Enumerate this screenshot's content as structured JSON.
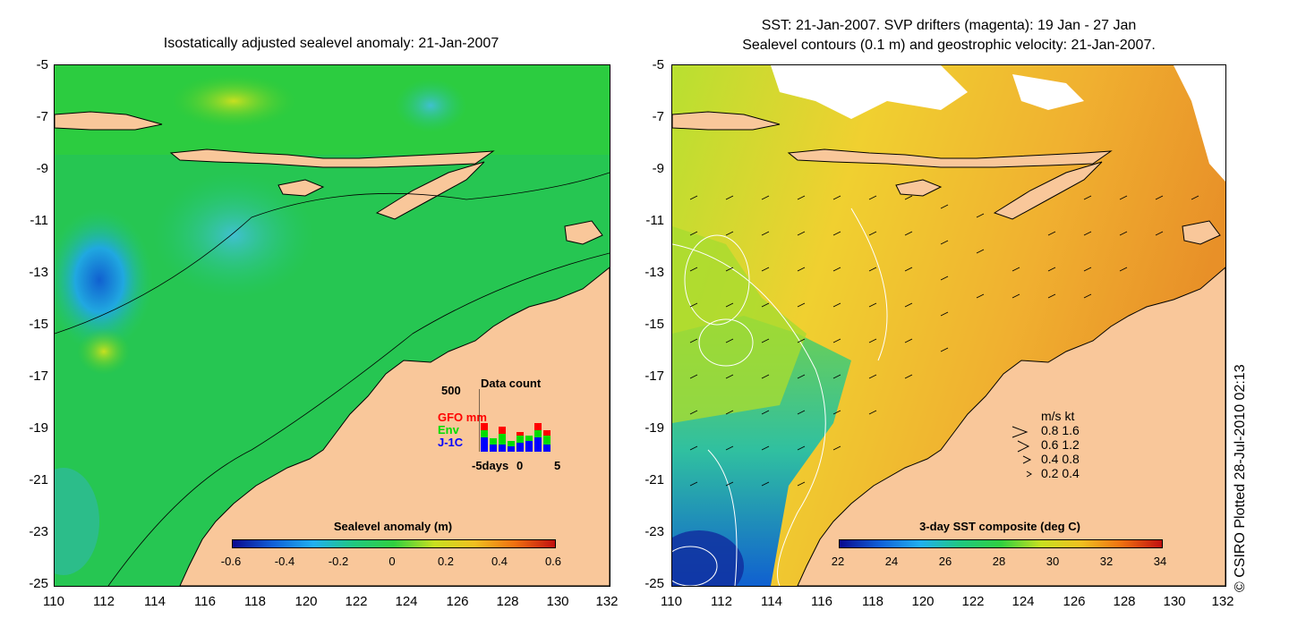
{
  "left_map": {
    "title": "Isostatically adjusted sealevel anomaly: 21-Jan-2007",
    "y_ticks": [
      "-5",
      "-7",
      "-9",
      "-11",
      "-13",
      "-15",
      "-17",
      "-19",
      "-21",
      "-23",
      "-25"
    ],
    "x_ticks": [
      "110",
      "112",
      "114",
      "116",
      "118",
      "120",
      "122",
      "124",
      "126",
      "128",
      "130",
      "132"
    ],
    "colorbar": {
      "title": "Sealevel anomaly (m)",
      "ticks": [
        "-0.6",
        "-0.4",
        "-0.2",
        "0",
        "0.2",
        "0.4",
        "0.6"
      ],
      "range": [
        -0.6,
        0.6
      ]
    },
    "data_count": {
      "title": "Data count",
      "max_label": "500",
      "series": [
        {
          "name": "GFO mm",
          "color": "#ff0000"
        },
        {
          "name": "Env",
          "color": "#00dd00"
        },
        {
          "name": "J-1C",
          "color": "#0000ff"
        }
      ],
      "x_labels": [
        "-5days",
        "0",
        "5"
      ]
    }
  },
  "right_map": {
    "title_line1": "SST: 21-Jan-2007. SVP drifters (magenta): 19 Jan - 27 Jan",
    "title_line2": "Sealevel contours (0.1 m) and geostrophic velocity: 21-Jan-2007.",
    "y_ticks": [
      "-5",
      "-7",
      "-9",
      "-11",
      "-13",
      "-15",
      "-17",
      "-19",
      "-21",
      "-23",
      "-25"
    ],
    "x_ticks": [
      "110",
      "112",
      "114",
      "116",
      "118",
      "120",
      "122",
      "124",
      "126",
      "128",
      "130",
      "132"
    ],
    "colorbar": {
      "title": "3-day SST composite (deg C)",
      "ticks": [
        "22",
        "24",
        "26",
        "28",
        "30",
        "32",
        "34"
      ],
      "range": [
        22,
        34
      ]
    },
    "velocity_legend": {
      "header": "m/s  kt",
      "rows": [
        "0.8  1.6",
        "0.6  1.2",
        "0.4  0.8",
        "0.2  0.4"
      ]
    }
  },
  "credit": "© CSIRO Plotted 28-Jul-2010 02:13",
  "colors": {
    "land": "#f9c79a",
    "sea_green": "#22cc44",
    "sea_warm": "#e0a020"
  }
}
